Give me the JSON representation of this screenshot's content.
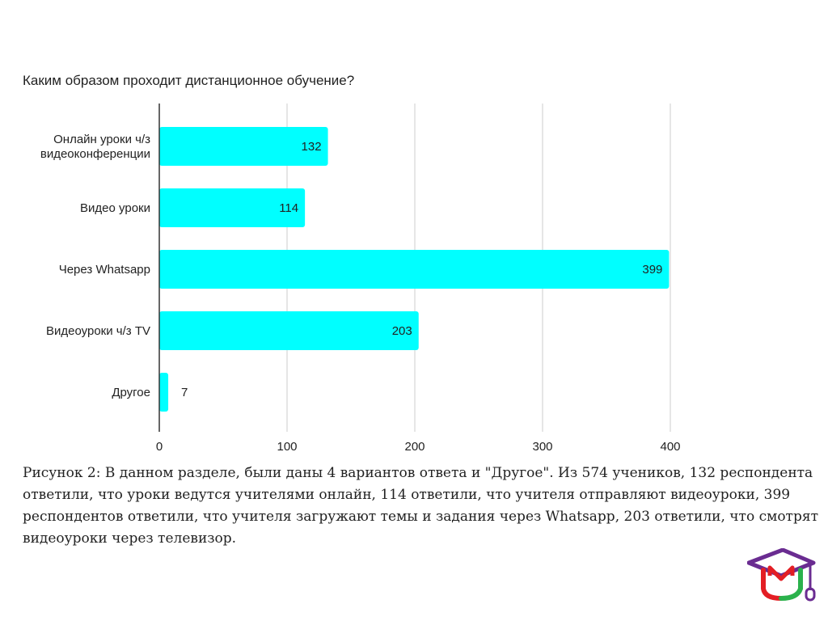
{
  "chart_data": {
    "type": "bar",
    "orientation": "horizontal",
    "title": "Каким образом проходит дистанционное обучение?",
    "categories": [
      [
        "Онлайн уроки ч/з",
        "видеоконференции"
      ],
      [
        "Видео уроки"
      ],
      [
        "Через Whatsapp"
      ],
      [
        "Видеоуроки ч/з TV"
      ],
      [
        "Другое"
      ]
    ],
    "values": [
      132,
      114,
      399,
      203,
      7
    ],
    "xlim": [
      0,
      400
    ],
    "xticks": [
      0,
      100,
      200,
      300,
      400
    ],
    "grid": true,
    "bar_color": "#00ffff",
    "data_labels": true
  },
  "caption": "Рисунок 2: В данном разделе, были даны 4 вариантов ответа и \"Другое\". Из 574 учеников, 132 респондента ответили, что уроки ведутся учителями онлайн, 114 ответили, что учителя отправляют видеоуроки, 399 респондентов ответили, что учителя загружают темы и задания через Whatsapp, 203 ответили, что смотрят видеоуроки через телевизор.",
  "logo": {
    "icon": "graduation-cap-icon",
    "colors": [
      "#6a2c91",
      "#1e73be",
      "#e31e24",
      "#2bb24c"
    ]
  }
}
